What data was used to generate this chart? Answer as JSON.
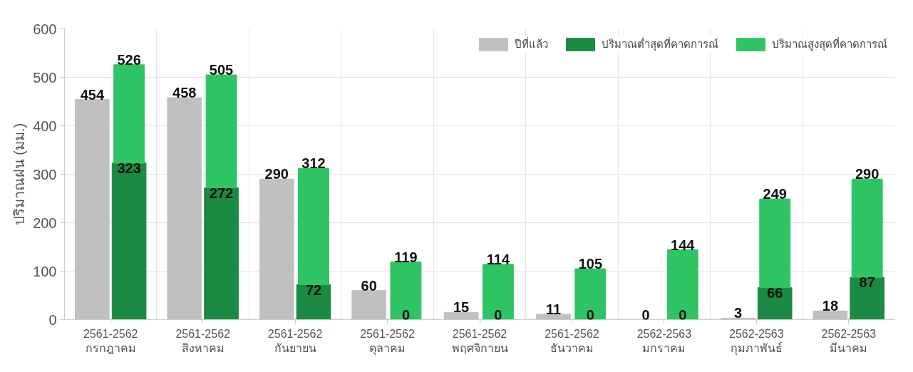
{
  "chart_data": {
    "type": "bar",
    "ylabel": "ปริมาณฝน (มม.)",
    "categories": [
      "2561-2562\nกรกฎาคม",
      "2561-2562\nสิงหาคม",
      "2561-2562\nกันยายน",
      "2561-2562\nตุลาคม",
      "2561-2562\nพฤศจิกายน",
      "2561-2562\nธันวาคม",
      "2562-2563\nมกราคม",
      "2562-2563\nกุมภาพันธ์",
      "2562-2563\nมีนาคม"
    ],
    "series": [
      {
        "name": "ปีที่แล้ว",
        "color": "#c0c0c0",
        "values": [
          454,
          458,
          290,
          60,
          15,
          11,
          0,
          3,
          18
        ],
        "value_labels": [
          "454",
          "458",
          "290",
          "60",
          "15",
          "11",
          "0",
          "3",
          "18"
        ]
      },
      {
        "name": "ปริมาณต่ำสุดที่คาดการณ์",
        "color": "#1b8a42",
        "values": [
          323,
          272,
          72,
          0,
          0,
          0,
          0,
          66,
          87
        ],
        "value_labels": [
          "323",
          "272",
          "72",
          "0",
          "0",
          "0",
          "0",
          "66",
          "87"
        ]
      },
      {
        "name": "ปริมาณสูงสุดที่คาดการณ์",
        "color": "#2ec463",
        "base": [
          323,
          272,
          72,
          0,
          0,
          0,
          0,
          66,
          87
        ],
        "values": [
          203,
          233,
          240,
          119,
          114,
          105,
          144,
          183,
          203
        ],
        "value_labels": [
          "526",
          "505",
          "312",
          "119",
          "114",
          "105",
          "144",
          "249",
          "290"
        ]
      }
    ],
    "ylim": [
      0,
      600
    ],
    "yticks": [
      0,
      100,
      200,
      300,
      400,
      500,
      600
    ],
    "grid": true,
    "legend": "top right"
  }
}
